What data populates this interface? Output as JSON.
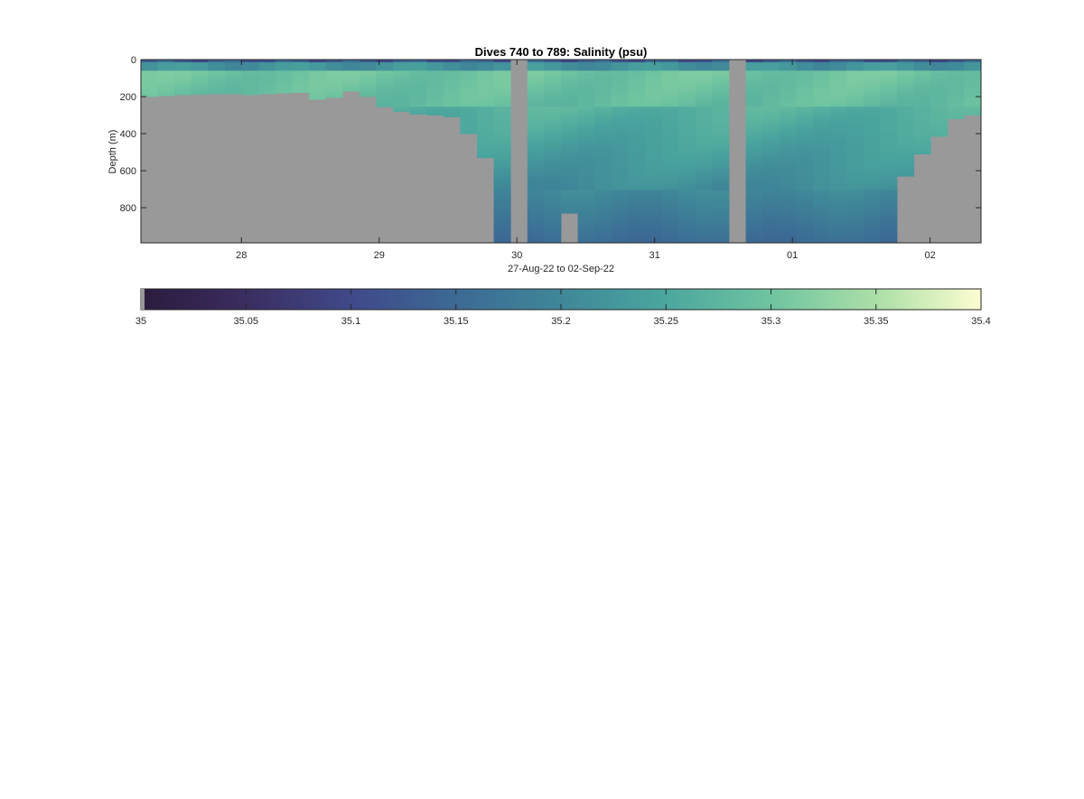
{
  "chart_data": {
    "type": "heatmap",
    "title": "Dives 740 to 789: Salinity (psu)",
    "xlabel": "27-Aug-22 to 02-Sep-22",
    "ylabel": "Depth (m)",
    "x_ticks": [
      "28",
      "29",
      "30",
      "31",
      "01",
      "02"
    ],
    "x_tick_days": [
      28,
      29,
      30,
      31,
      32,
      33
    ],
    "xlim_days": [
      27.27,
      33.37
    ],
    "y_ticks": [
      "0",
      "200",
      "400",
      "600",
      "800"
    ],
    "y_tick_values": [
      0,
      200,
      400,
      600,
      800
    ],
    "ylim": [
      0,
      990
    ],
    "y_reversed": true,
    "colorbar": {
      "ticks": [
        "35",
        "35.05",
        "35.1",
        "35.15",
        "35.2",
        "35.25",
        "35.3",
        "35.35",
        "35.4"
      ],
      "range": [
        35,
        35.4
      ]
    },
    "nodata_color": "#999999",
    "colors": {
      "low": "#2a1b3d",
      "mid_low": "#3f4a8a",
      "mid": "#3d8a99",
      "mid_high": "#6ec8a0",
      "high": "#fdfdd0"
    },
    "dive_max_depth_m": [
      200,
      195,
      190,
      187,
      185,
      185,
      190,
      185,
      180,
      178,
      215,
      205,
      170,
      200,
      255,
      280,
      295,
      300,
      310,
      400,
      530,
      990,
      0,
      990,
      990,
      830,
      990,
      990,
      990,
      990,
      990,
      990,
      990,
      990,
      990,
      0,
      990,
      990,
      990,
      990,
      990,
      990,
      990,
      990,
      990,
      630,
      510,
      415,
      320,
      300
    ]
  }
}
